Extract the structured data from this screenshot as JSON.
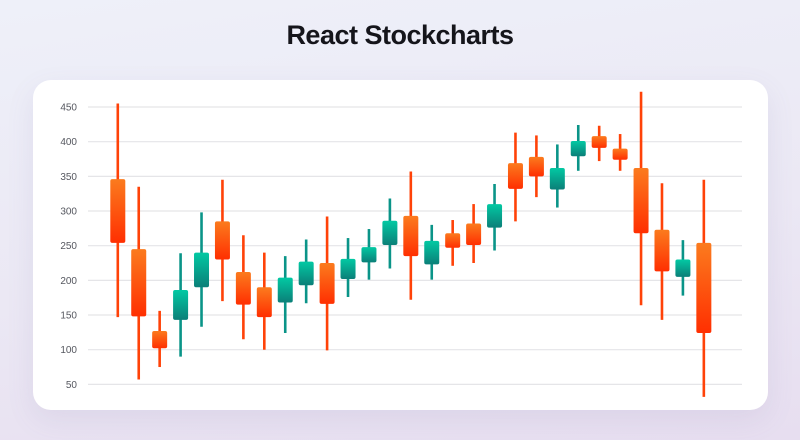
{
  "page": {
    "title": "React Stockcharts"
  },
  "chart_data": {
    "type": "candlestick",
    "title": "React Stockcharts",
    "xlabel": "",
    "ylabel": "",
    "x_tick_labels": [],
    "y_ticks": [
      450,
      400,
      350,
      300,
      250,
      200,
      150,
      100,
      50
    ],
    "ylim": [
      25,
      480
    ],
    "grid": true,
    "legend": false,
    "colors": {
      "bearish_body_top": "#fb7b1e",
      "bearish_body_bottom": "#ff2f01",
      "bearish_wick": "#ff4208",
      "bullish_body_top": "#02c9a3",
      "bullish_body_bottom": "#0b7f78",
      "bullish_wick": "#0a9488",
      "gridline": "#e5e5e8",
      "axis_label": "#55575f",
      "card_background": "#ffffff",
      "page_background": "#ebe8f4",
      "title_color": "#15151b"
    },
    "candles": [
      {
        "open": 346,
        "high": 455,
        "low": 147,
        "close": 254
      },
      {
        "open": 245,
        "high": 335,
        "low": 57,
        "close": 148
      },
      {
        "open": 127,
        "high": 156,
        "low": 75,
        "close": 102
      },
      {
        "open": 143,
        "high": 239,
        "low": 90,
        "close": 186
      },
      {
        "open": 190,
        "high": 298,
        "low": 133,
        "close": 240
      },
      {
        "open": 285,
        "high": 345,
        "low": 170,
        "close": 230
      },
      {
        "open": 212,
        "high": 265,
        "low": 115,
        "close": 165
      },
      {
        "open": 190,
        "high": 240,
        "low": 100,
        "close": 147
      },
      {
        "open": 168,
        "high": 235,
        "low": 124,
        "close": 204
      },
      {
        "open": 193,
        "high": 259,
        "low": 167,
        "close": 227
      },
      {
        "open": 225,
        "high": 292,
        "low": 99,
        "close": 166
      },
      {
        "open": 202,
        "high": 261,
        "low": 176,
        "close": 231
      },
      {
        "open": 226,
        "high": 274,
        "low": 201,
        "close": 248
      },
      {
        "open": 251,
        "high": 318,
        "low": 217,
        "close": 286
      },
      {
        "open": 293,
        "high": 357,
        "low": 172,
        "close": 235
      },
      {
        "open": 223,
        "high": 280,
        "low": 201,
        "close": 257
      },
      {
        "open": 268,
        "high": 287,
        "low": 221,
        "close": 247
      },
      {
        "open": 282,
        "high": 310,
        "low": 225,
        "close": 251
      },
      {
        "open": 276,
        "high": 339,
        "low": 243,
        "close": 310
      },
      {
        "open": 369,
        "high": 413,
        "low": 285,
        "close": 332
      },
      {
        "open": 378,
        "high": 409,
        "low": 320,
        "close": 350
      },
      {
        "open": 331,
        "high": 396,
        "low": 305,
        "close": 362
      },
      {
        "open": 379,
        "high": 424,
        "low": 358,
        "close": 401
      },
      {
        "open": 408,
        "high": 423,
        "low": 372,
        "close": 391
      },
      {
        "open": 390,
        "high": 411,
        "low": 358,
        "close": 374
      },
      {
        "open": 362,
        "high": 472,
        "low": 164,
        "close": 268
      },
      {
        "open": 273,
        "high": 340,
        "low": 143,
        "close": 213
      },
      {
        "open": 205,
        "high": 258,
        "low": 178,
        "close": 230
      },
      {
        "open": 254,
        "high": 345,
        "low": 32,
        "close": 124
      }
    ]
  }
}
